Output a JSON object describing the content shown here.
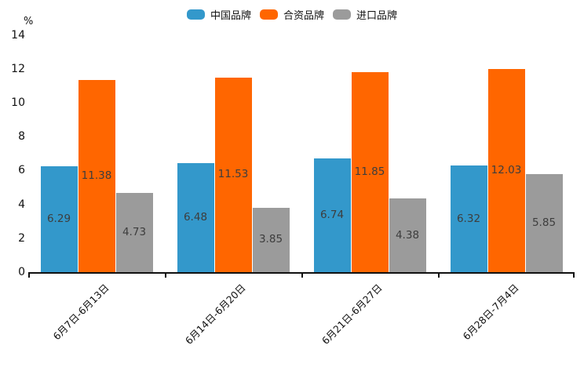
{
  "chart_data": {
    "type": "bar",
    "title": "",
    "unit_label": "%",
    "categories": [
      "6月7日-6月13日",
      "6月14日-6月20日",
      "6月21日-6月27日",
      "6月28日-7月4日"
    ],
    "series": [
      {
        "name": "中国品牌",
        "color": "#3398CB",
        "values": [
          6.29,
          6.48,
          6.74,
          6.32
        ]
      },
      {
        "name": "合资品牌",
        "color": "#FF6600",
        "values": [
          11.38,
          11.53,
          11.85,
          12.03
        ]
      },
      {
        "name": "进口品牌",
        "color": "#9B9B9B",
        "values": [
          4.73,
          3.85,
          4.38,
          5.85
        ]
      }
    ],
    "yticks": [
      0,
      2,
      4,
      6,
      8,
      10,
      12,
      14
    ],
    "ylim": [
      0,
      14
    ],
    "legend_position": "top-center",
    "grid": false,
    "value_labels": "inside-center",
    "x_label_rotation_deg": 45
  }
}
